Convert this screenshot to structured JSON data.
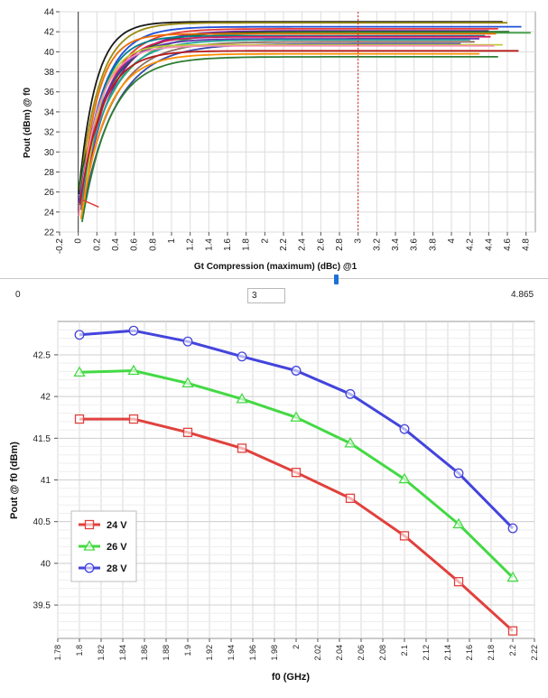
{
  "chart_data": [
    {
      "type": "line",
      "title": "",
      "xlabel": "Gt Compression (maximum) (dBc) @1",
      "ylabel": "Pout (dBm) @ f0",
      "xlim": [
        -0.2,
        4.9
      ],
      "ylim": [
        22,
        44
      ],
      "grid": true,
      "x_ticks": [
        -0.2,
        0,
        0.2,
        0.4,
        0.6,
        0.8,
        1,
        1.2,
        1.4,
        1.6,
        1.8,
        2,
        2.2,
        2.4,
        2.6,
        2.8,
        3,
        3.2,
        3.4,
        3.6,
        3.8,
        4,
        4.2,
        4.4,
        4.6,
        4.8
      ],
      "x_tick_labels": [
        "-0.2",
        "0",
        "0.2",
        "0.4",
        "0.6",
        "0.8",
        "1",
        "1.2",
        "1.4",
        "1.6",
        "1.8",
        "2",
        "2.2",
        "2.4",
        "2.6",
        "2.8",
        "3",
        "3.2",
        "3.4",
        "3.6",
        "3.8",
        "4",
        "4.2",
        "4.4",
        "4.6",
        "4.8"
      ],
      "y_ticks": [
        22,
        24,
        26,
        28,
        30,
        32,
        34,
        36,
        38,
        40,
        42,
        44
      ],
      "y_tick_labels": [
        "22",
        "24",
        "26",
        "28",
        "30",
        "32",
        "34",
        "36",
        "38",
        "40",
        "42",
        "44"
      ],
      "marker_x": 3,
      "series": [
        {
          "color": "#1a1a1a",
          "sat": 43.0,
          "end": 4.55,
          "start": 25.8
        },
        {
          "color": "#9a8a10",
          "sat": 42.9,
          "end": 4.6,
          "start": 26.2
        },
        {
          "color": "#2050d8",
          "sat": 42.5,
          "end": 4.75,
          "start": 25.5
        },
        {
          "color": "#e53935",
          "sat": 42.3,
          "end": 4.5,
          "start": 25.0
        },
        {
          "color": "#7b1fa2",
          "sat": 42.1,
          "end": 4.4,
          "start": 25.3
        },
        {
          "color": "#1b5e20",
          "sat": 42.0,
          "end": 4.62,
          "start": 26.5
        },
        {
          "color": "#43a047",
          "sat": 41.9,
          "end": 4.85,
          "start": 25.9
        },
        {
          "color": "#ef6c00",
          "sat": 41.8,
          "end": 4.48,
          "start": 24.8
        },
        {
          "color": "#00838f",
          "sat": 41.6,
          "end": 4.36,
          "start": 25.1
        },
        {
          "color": "#d81b60",
          "sat": 41.5,
          "end": 4.42,
          "start": 24.6
        },
        {
          "color": "#5e35b1",
          "sat": 41.3,
          "end": 4.3,
          "start": 24.9
        },
        {
          "color": "#26a69a",
          "sat": 41.2,
          "end": 4.2,
          "start": 24.4
        },
        {
          "color": "#8d6e63",
          "sat": 41.0,
          "end": 4.25,
          "start": 24.2
        },
        {
          "color": "#3949ab",
          "sat": 40.8,
          "end": 4.1,
          "start": 23.9
        },
        {
          "color": "#c0ca33",
          "sat": 40.7,
          "end": 4.55,
          "start": 24.0
        },
        {
          "color": "#f48fb1",
          "sat": 40.6,
          "end": 4.46,
          "start": 23.6
        },
        {
          "color": "#b71c1c",
          "sat": 40.1,
          "end": 4.72,
          "start": 24.7
        },
        {
          "color": "#ff8f00",
          "sat": 39.8,
          "end": 4.3,
          "start": 23.3
        },
        {
          "color": "#2e7d32",
          "sat": 39.5,
          "end": 4.5,
          "start": 23.0
        }
      ]
    },
    {
      "type": "line",
      "title": "",
      "xlabel": "f0 (GHz)",
      "ylabel": "Pout @ f0 (dBm)",
      "xlim": [
        1.78,
        2.22
      ],
      "ylim": [
        39.1,
        42.9
      ],
      "grid": true,
      "legend": "left",
      "x_tick_labels": [
        "1.78",
        "1.8",
        "1.82",
        "1.84",
        "1.86",
        "1.88",
        "1.9",
        "1.92",
        "1.94",
        "1.96",
        "1.98",
        "2",
        "2.02",
        "2.04",
        "2.06",
        "2.08",
        "2.1",
        "2.12",
        "2.14",
        "2.16",
        "2.18",
        "2.2",
        "2.22"
      ],
      "y_ticks": [
        39.5,
        40,
        40.5,
        41,
        41.5,
        42,
        42.5
      ],
      "y_tick_labels": [
        "39.5",
        "40",
        "40.5",
        "41",
        "41.5",
        "42",
        "42.5"
      ],
      "x": [
        1.8,
        1.85,
        1.9,
        1.95,
        2.0,
        2.05,
        2.1,
        2.15,
        2.2
      ],
      "series": [
        {
          "name": "24 V",
          "color": "#e0413d",
          "marker": "square",
          "values": [
            41.73,
            41.73,
            41.57,
            41.38,
            41.09,
            40.78,
            40.33,
            39.78,
            39.19
          ]
        },
        {
          "name": "26 V",
          "color": "#44d944",
          "marker": "triangle",
          "values": [
            42.29,
            42.31,
            42.16,
            41.97,
            41.75,
            41.44,
            41.01,
            40.47,
            39.83
          ]
        },
        {
          "name": "28 V",
          "color": "#4444dd",
          "marker": "circle",
          "values": [
            42.74,
            42.79,
            42.66,
            42.48,
            42.31,
            42.03,
            41.61,
            41.08,
            40.42
          ]
        }
      ]
    }
  ],
  "slider": {
    "min_label": "0",
    "value": "3",
    "max_label": "4.865",
    "position": 0.617
  }
}
